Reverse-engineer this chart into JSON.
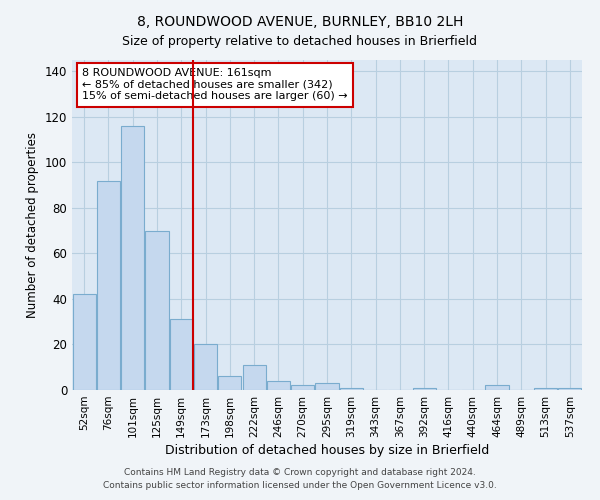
{
  "title1": "8, ROUNDWOOD AVENUE, BURNLEY, BB10 2LH",
  "title2": "Size of property relative to detached houses in Brierfield",
  "xlabel": "Distribution of detached houses by size in Brierfield",
  "ylabel": "Number of detached properties",
  "categories": [
    "52sqm",
    "76sqm",
    "101sqm",
    "125sqm",
    "149sqm",
    "173sqm",
    "198sqm",
    "222sqm",
    "246sqm",
    "270sqm",
    "295sqm",
    "319sqm",
    "343sqm",
    "367sqm",
    "392sqm",
    "416sqm",
    "440sqm",
    "464sqm",
    "489sqm",
    "513sqm",
    "537sqm"
  ],
  "values": [
    42,
    92,
    116,
    70,
    31,
    20,
    6,
    11,
    4,
    2,
    3,
    1,
    0,
    0,
    1,
    0,
    0,
    2,
    0,
    1,
    1
  ],
  "bar_color": "#c5d8ee",
  "bar_edge_color": "#7aacce",
  "vline_x": 4.5,
  "vline_color": "#cc0000",
  "annotation_lines": [
    "8 ROUNDWOOD AVENUE: 161sqm",
    "← 85% of detached houses are smaller (342)",
    "15% of semi-detached houses are larger (60) →"
  ],
  "annotation_box_color": "#cc0000",
  "ylim": [
    0,
    145
  ],
  "yticks": [
    0,
    20,
    40,
    60,
    80,
    100,
    120,
    140
  ],
  "grid_color": "#b8cfe0",
  "background_color": "#dce8f4",
  "fig_background": "#f0f4f8",
  "footer1": "Contains HM Land Registry data © Crown copyright and database right 2024.",
  "footer2": "Contains public sector information licensed under the Open Government Licence v3.0."
}
